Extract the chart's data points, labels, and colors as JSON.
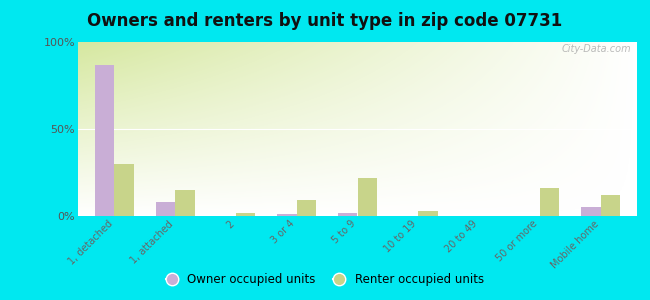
{
  "title": "Owners and renters by unit type in zip code 07731",
  "categories": [
    "1, detached",
    "1, attached",
    "2",
    "3 or 4",
    "5 to 9",
    "10 to 19",
    "20 to 49",
    "50 or more",
    "Mobile home"
  ],
  "owner_values": [
    87,
    8,
    0,
    1,
    2,
    0,
    0,
    0,
    5
  ],
  "renter_values": [
    30,
    15,
    2,
    9,
    22,
    3,
    0,
    16,
    12
  ],
  "owner_color": "#c9aed6",
  "renter_color": "#c8d48a",
  "outer_bg": "#00e8f0",
  "ylim": [
    0,
    100
  ],
  "yticks": [
    0,
    50,
    100
  ],
  "ytick_labels": [
    "0%",
    "50%",
    "100%"
  ],
  "bar_width": 0.32,
  "title_fontsize": 12,
  "legend_owner": "Owner occupied units",
  "legend_renter": "Renter occupied units",
  "watermark": "City-Data.com"
}
